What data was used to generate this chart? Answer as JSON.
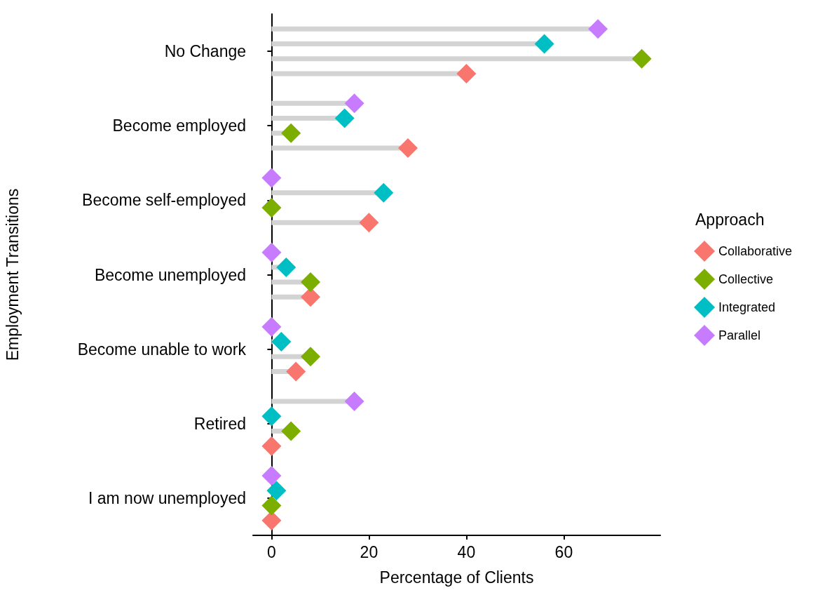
{
  "chart_data": {
    "type": "lollipop",
    "orientation": "horizontal",
    "categories": [
      "No Change",
      "Become employed",
      "Become self-employed",
      "Become unemployed",
      "Become unable to work",
      "Retired",
      "I am now unemployed"
    ],
    "xlabel": "Percentage of Clients",
    "ylabel": "Employment Transitions",
    "legend_title": "Approach",
    "xlim": [
      -3.8,
      79.8
    ],
    "xticks": [
      0,
      20,
      40,
      60
    ],
    "grid": false,
    "legend": "right",
    "marker": "diamond",
    "series": [
      {
        "name": "Collaborative",
        "color": "#f8766d",
        "values": [
          40,
          28,
          20,
          8,
          5,
          0,
          0
        ]
      },
      {
        "name": "Collective",
        "color": "#7cae00",
        "values": [
          76,
          4,
          0,
          8,
          8,
          4,
          0
        ]
      },
      {
        "name": "Integrated",
        "color": "#00bfc4",
        "values": [
          56,
          15,
          23,
          3,
          2,
          0,
          1
        ]
      },
      {
        "name": "Parallel",
        "color": "#c77cff",
        "values": [
          67,
          17,
          0,
          0,
          0,
          17,
          0
        ]
      }
    ]
  }
}
